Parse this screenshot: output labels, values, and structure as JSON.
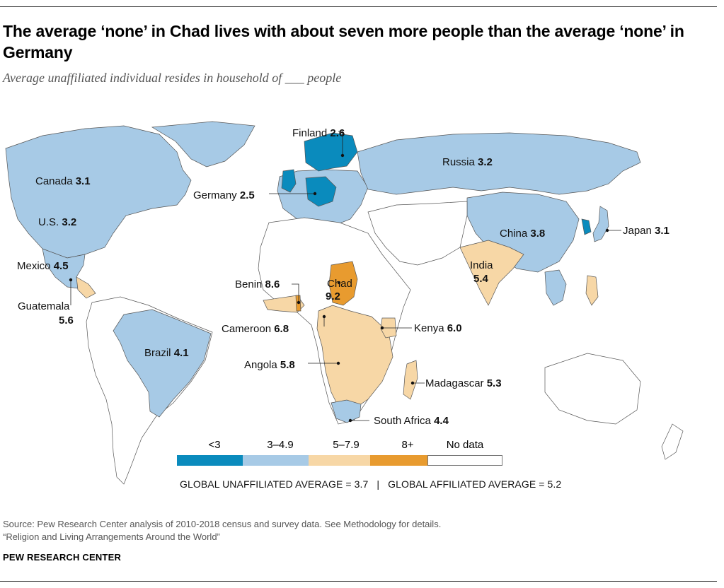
{
  "header": {
    "title": "The average ‘none’ in Chad lives with about seven more people than the average ‘none’ in Germany",
    "subtitle": "Average unaffiliated individual resides in household of ___ people"
  },
  "colors": {
    "lt3": "#0a8bbd",
    "r3_4_9": "#a7cae6",
    "r5_7_9": "#f7d7a6",
    "gte8": "#e89b2f",
    "no_data": "#ffffff",
    "border": "#555555"
  },
  "labels": [
    {
      "country": "Finland",
      "value": "2.6"
    },
    {
      "country": "Russia",
      "value": "3.2"
    },
    {
      "country": "Canada",
      "value": "3.1"
    },
    {
      "country": "Germany",
      "value": "2.5"
    },
    {
      "country": "U.S.",
      "value": "3.2"
    },
    {
      "country": "China",
      "value": "3.8"
    },
    {
      "country": "Japan",
      "value": "3.1"
    },
    {
      "country": "Mexico",
      "value": "4.5"
    },
    {
      "country": "India",
      "value": "5.4"
    },
    {
      "country": "Benin",
      "value": "8.6"
    },
    {
      "country": "Chad",
      "value": "9.2"
    },
    {
      "country": "Guatemala",
      "value": "5.6"
    },
    {
      "country": "Cameroon",
      "value": "6.8"
    },
    {
      "country": "Kenya",
      "value": "6.0"
    },
    {
      "country": "Brazil",
      "value": "4.1"
    },
    {
      "country": "Angola",
      "value": "5.8"
    },
    {
      "country": "Madagascar",
      "value": "5.3"
    },
    {
      "country": "South Africa",
      "value": "4.4"
    }
  ],
  "legend": {
    "items": [
      {
        "label": "<3",
        "color": "#0a8bbd"
      },
      {
        "label": "3–4.9",
        "color": "#a7cae6"
      },
      {
        "label": "5–7.9",
        "color": "#f7d7a6"
      },
      {
        "label": "8+",
        "color": "#e89b2f"
      },
      {
        "label": "No data",
        "color": "#ffffff"
      }
    ]
  },
  "averages": "GLOBAL UNAFFILIATED AVERAGE = 3.7   |   GLOBAL AFFILIATED AVERAGE = 5.2",
  "footer": {
    "source": "Source: Pew Research Center analysis of 2010-2018 census and survey data. See Methodology for details.",
    "report": "“Religion and Living Arrangements Around the World”",
    "brand": "PEW RESEARCH CENTER"
  }
}
